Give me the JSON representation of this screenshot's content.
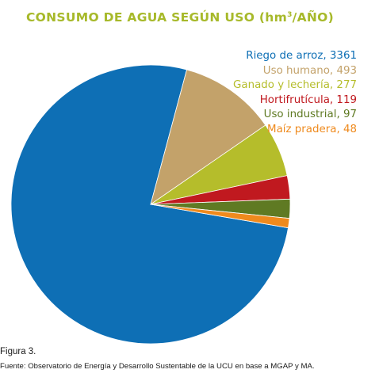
{
  "colors": {
    "title": "#a7b92a",
    "riego": "#0e6fb5",
    "humano": "#c3a26a",
    "ganado": "#b5bd2b",
    "horti": "#c0191f",
    "industrial": "#5f7a23",
    "maiz": "#ef8a1d"
  },
  "chart_data": {
    "type": "pie",
    "title_main": "CONSUMO DE AGUA SEGÚN USO (hm",
    "title_sup": "3",
    "title_end": "/AÑO)",
    "slices": [
      {
        "label": "Riego de arroz, 3361",
        "value": 3361,
        "color": "#0e6fb5"
      },
      {
        "label": "Uso humano, 493",
        "value": 493,
        "color": "#c3a26a"
      },
      {
        "label": "Ganado y lechería, 277",
        "value": 277,
        "color": "#b5bd2b"
      },
      {
        "label": "Hortifrutícula, 119",
        "value": 119,
        "color": "#c0191f"
      },
      {
        "label": "Uso industrial, 97",
        "value": 97,
        "color": "#5f7a23"
      },
      {
        "label": "Maíz pradera, 48",
        "value": 48,
        "color": "#ef8a1d"
      }
    ]
  },
  "caption": "Figura 3.",
  "source": "Fuente: Observatorio de Energía y Desarrollo Sustentable de la UCU en base a MGAP y MA."
}
